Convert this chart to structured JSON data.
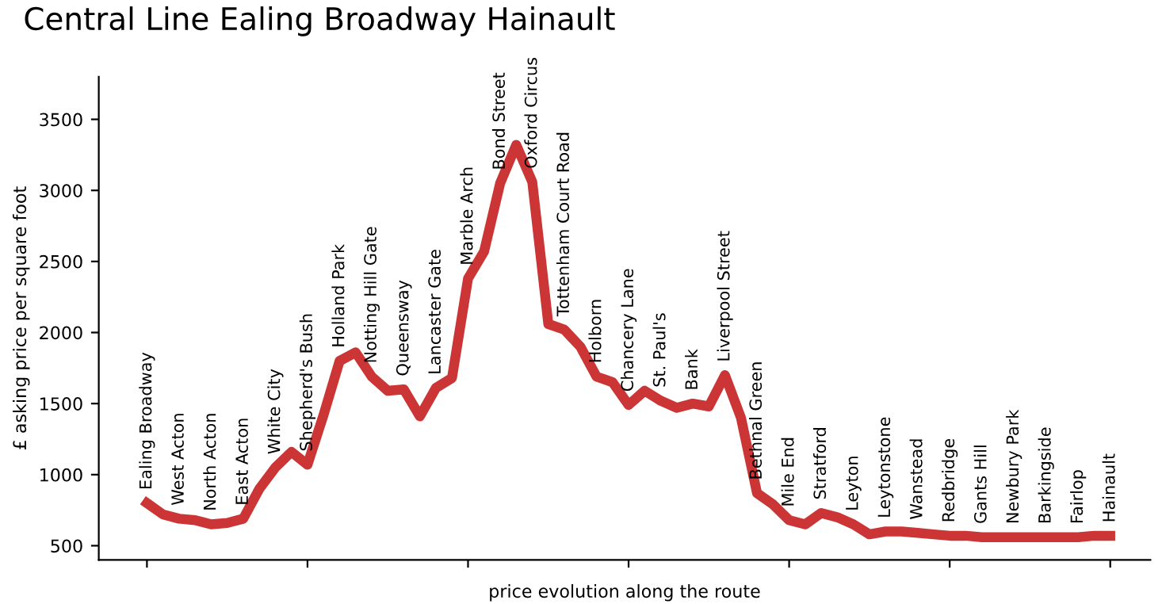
{
  "chart_data": {
    "type": "line",
    "title": "Central Line Ealing Broadway Hainault",
    "xlabel": "price evolution along the route",
    "ylabel": "£ asking price per square foot",
    "categories": [
      null,
      null,
      null,
      null,
      null,
      null,
      null,
      null,
      null,
      null,
      null,
      null,
      null,
      null,
      null,
      null,
      null,
      null,
      null,
      null,
      null,
      null,
      null,
      null,
      null,
      null,
      null,
      null,
      null,
      null,
      null,
      null,
      null,
      null,
      null,
      null,
      null,
      null,
      null,
      null,
      null,
      null,
      null,
      null,
      null,
      null,
      null,
      null,
      null,
      null,
      null,
      null,
      null,
      null,
      null,
      null,
      null,
      null,
      null,
      null,
      null
    ],
    "series": [
      {
        "color": "#cc3535",
        "values": [
          800,
          720,
          690,
          680,
          650,
          660,
          690,
          900,
          1050,
          1160,
          1070,
          1420,
          1800,
          1860,
          1690,
          1590,
          1600,
          1410,
          1610,
          1680,
          2380,
          2570,
          3050,
          3320,
          3060,
          2060,
          2020,
          1900,
          1690,
          1650,
          1490,
          1590,
          1520,
          1470,
          1500,
          1480,
          1700,
          1400,
          870,
          790,
          680,
          650,
          730,
          700,
          650,
          580,
          600,
          600,
          590,
          580,
          570,
          570,
          560,
          560,
          560,
          560,
          560,
          560,
          560,
          570,
          570
        ]
      }
    ],
    "ylim": [
      400,
      3800
    ],
    "yticks": [
      500,
      1000,
      1500,
      2000,
      2500,
      3000,
      3500
    ],
    "tick_labels": "y",
    "grid": false,
    "marker": "none",
    "line_style": "solid",
    "annotations": [
      "Ealing Broadway",
      "West Acton",
      "North Acton",
      "East Acton",
      "White City",
      "Shepherd's Bush",
      "Holland Park",
      "Notting Hill Gate",
      "Queensway",
      "Lancaster Gate",
      "Marble Arch",
      "Bond Street",
      "Oxford Circus",
      "Tottenham Court Road",
      "Holborn",
      "Chancery Lane",
      "St. Paul's",
      "Bank",
      "Liverpool Street",
      "Bethnal Green",
      "Mile End",
      "Stratford",
      "Leyton",
      "Leytonstone",
      "Wanstead",
      "Redbridge",
      "Gants Hill",
      "Newbury Park",
      "Barkingside",
      "Fairlop",
      "Hainault"
    ]
  }
}
